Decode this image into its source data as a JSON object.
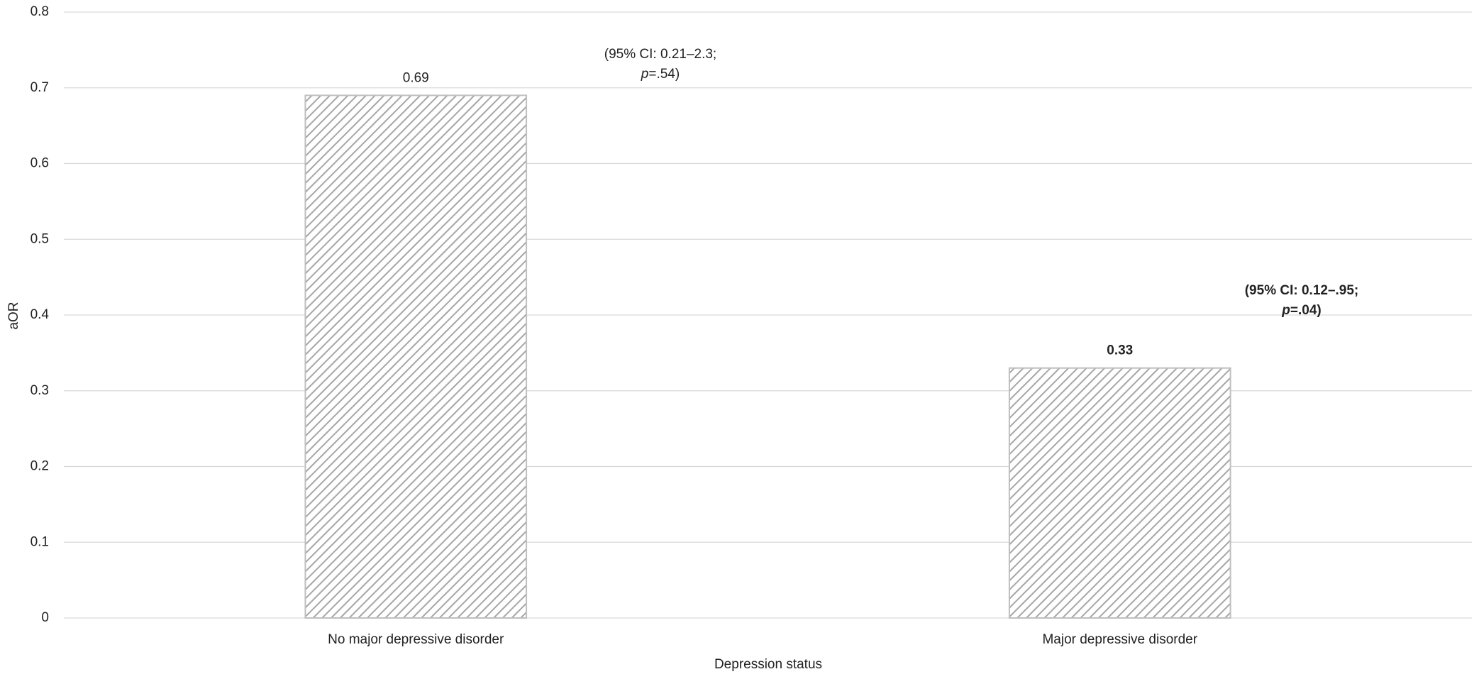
{
  "chart_data": {
    "type": "bar",
    "x_label": "Depression status",
    "y_label": "aOR",
    "categories": [
      "No major depressive disorder",
      "Major depressive disorder"
    ],
    "values": [
      0.69,
      0.33
    ],
    "color": "#a6a6a6",
    "ylim": [
      0,
      0.8
    ],
    "yticks": [
      0,
      0.1,
      0.2,
      0.3,
      0.4,
      0.5,
      0.6,
      0.7,
      0.8
    ],
    "grid": true,
    "annotations": [
      {
        "line1": "(95% CI: 0.21–2.3;",
        "p": "p",
        "line2": "=.54)"
      },
      {
        "line1": "(95% CI: 0.12–.95;",
        "p": "p",
        "line2": "=.04)"
      }
    ]
  }
}
